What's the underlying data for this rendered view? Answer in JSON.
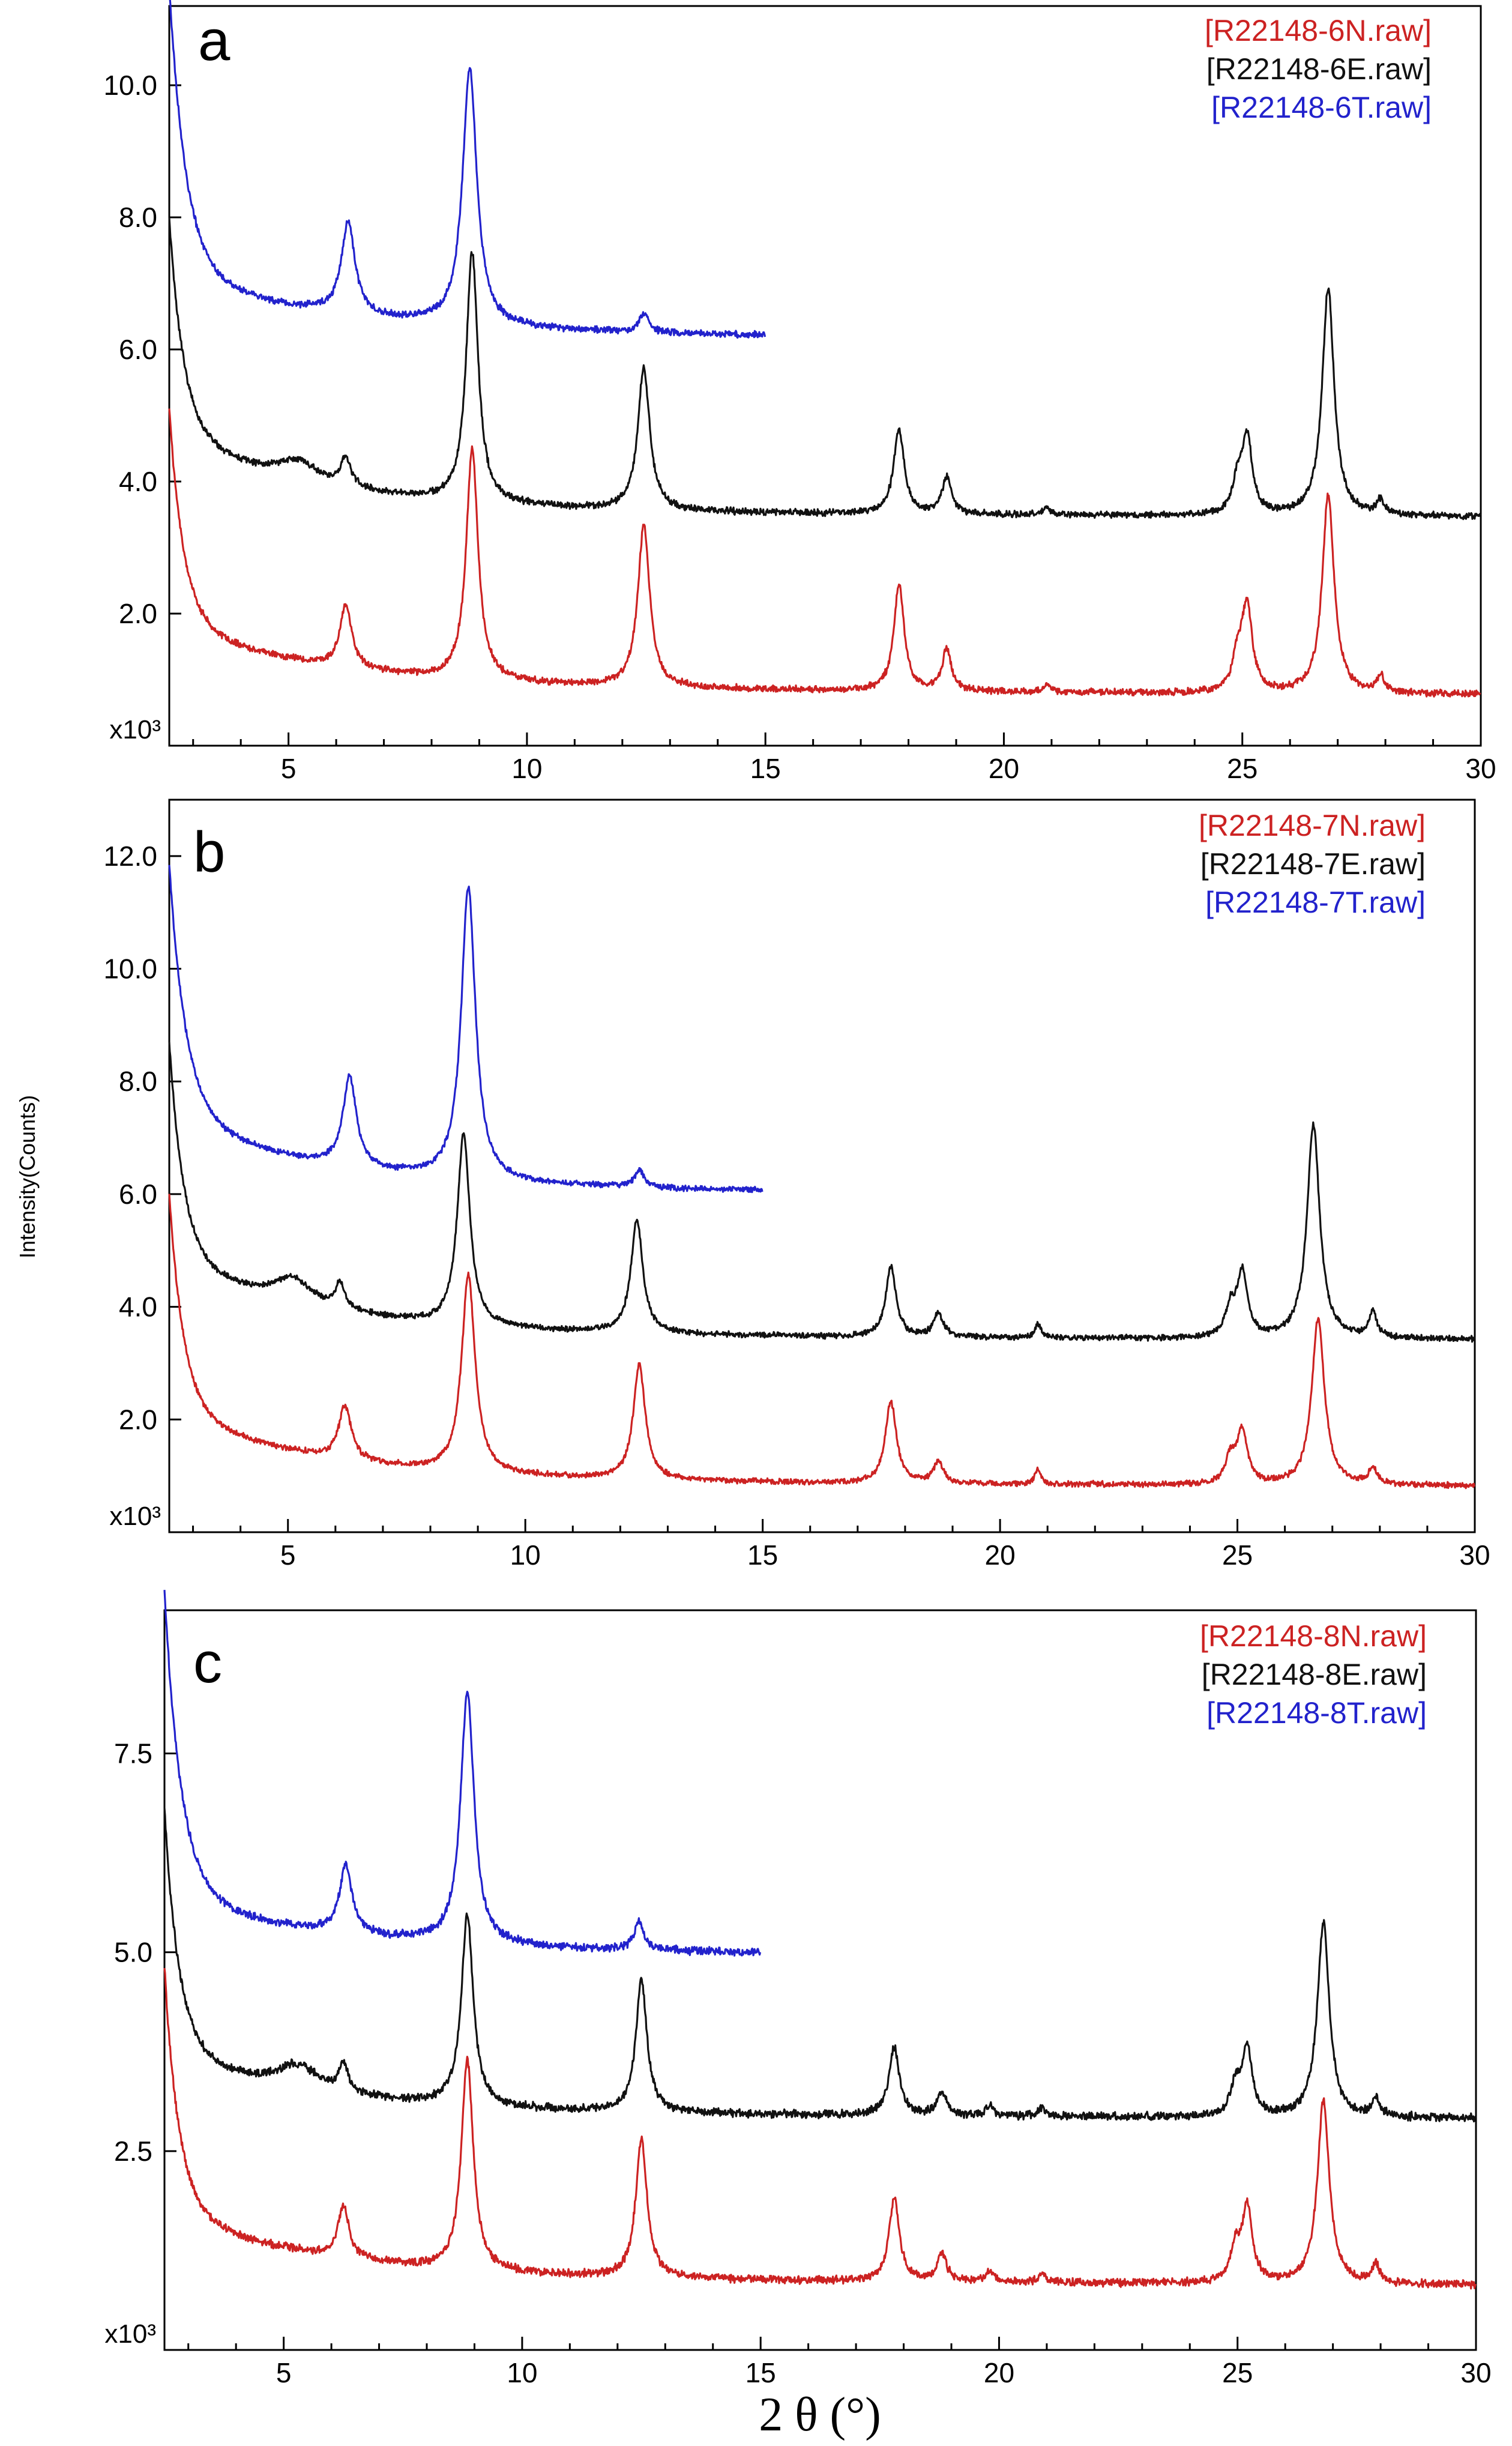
{
  "figure": {
    "xlabel": "2 θ (°)",
    "ylabel": "Intensity(Counts)"
  },
  "chart_data": [
    {
      "type": "line",
      "panel_label": "a",
      "xlim": [
        2.5,
        30
      ],
      "ylim": [
        0,
        11.2
      ],
      "multiplier_label": "x10³",
      "x_ticks": [
        5,
        10,
        15,
        20,
        25,
        30
      ],
      "x_tick_labels": [
        "5",
        "10",
        "15",
        "20",
        "25",
        "30"
      ],
      "y_ticks": [
        2.0,
        4.0,
        6.0,
        8.0,
        10.0
      ],
      "y_tick_labels": [
        "2.0",
        "4.0",
        "6.0",
        "8.0",
        "10.0"
      ],
      "series": [
        {
          "name": "[R22148-6N.raw]",
          "color": "#cc2222",
          "x_end": 30,
          "baseline": 0.75,
          "rise": 3.2,
          "rise_w": 0.3,
          "hump": 0.9,
          "slope": 0.25,
          "peaks": [
            [
              6.2,
              0.95,
              0.15
            ],
            [
              8.85,
              3.5,
              0.15
            ],
            [
              12.45,
              2.45,
              0.15
            ],
            [
              17.8,
              1.6,
              0.13
            ],
            [
              18.8,
              0.62,
              0.12
            ],
            [
              20.9,
              0.14,
              0.08
            ],
            [
              25.1,
              1.3,
              0.13
            ],
            [
              24.9,
              0.5,
              0.12
            ],
            [
              26.8,
              3.0,
              0.15
            ],
            [
              27.9,
              0.25,
              0.1
            ]
          ]
        },
        {
          "name": "[R22148-6E.raw]",
          "color": "#111111",
          "x_end": 30,
          "baseline": 3.45,
          "rise": 3.2,
          "rise_w": 0.3,
          "hump": 1.15,
          "slope": 0.18,
          "peaks": [
            [
              5.2,
              0.3,
              0.5
            ],
            [
              6.2,
              0.45,
              0.12
            ],
            [
              8.85,
              3.8,
              0.15
            ],
            [
              12.45,
              2.15,
              0.15
            ],
            [
              17.8,
              1.3,
              0.13
            ],
            [
              18.8,
              0.55,
              0.12
            ],
            [
              20.9,
              0.12,
              0.08
            ],
            [
              25.1,
              1.15,
              0.13
            ],
            [
              24.9,
              0.45,
              0.12
            ],
            [
              26.8,
              3.45,
              0.15
            ],
            [
              27.9,
              0.22,
              0.1
            ]
          ]
        },
        {
          "name": "[R22148-6T.raw]",
          "color": "#2222cc",
          "x_end": 15,
          "baseline": 6.1,
          "rise": 4.3,
          "rise_w": 0.35,
          "hump": 0.8,
          "slope": 0.3,
          "peaks": [
            [
              6.25,
              1.4,
              0.17
            ],
            [
              8.8,
              3.9,
              0.18
            ],
            [
              12.45,
              0.28,
              0.12
            ]
          ]
        }
      ],
      "legend": [
        "[R22148-6N.raw]",
        "[R22148-6E.raw]",
        "[R22148-6T.raw]"
      ]
    },
    {
      "type": "line",
      "panel_label": "b",
      "xlim": [
        2.5,
        30
      ],
      "ylim": [
        0,
        13
      ],
      "multiplier_label": "x10³",
      "x_ticks": [
        5,
        10,
        15,
        20,
        25,
        30
      ],
      "x_tick_labels": [
        "5",
        "10",
        "15",
        "20",
        "25",
        "30"
      ],
      "y_ticks": [
        2.0,
        4.0,
        6.0,
        8.0,
        10.0,
        12.0
      ],
      "y_tick_labels": [
        "2.0",
        "4.0",
        "6.0",
        "8.0",
        "10.0",
        "12.0"
      ],
      "series": [
        {
          "name": "[R22148-7N.raw]",
          "color": "#cc2222",
          "x_end": 30,
          "baseline": 0.8,
          "rise": 3.8,
          "rise_w": 0.3,
          "hump": 1.2,
          "slope": 0.22,
          "peaks": [
            [
              6.2,
              0.95,
              0.16
            ],
            [
              8.8,
              3.5,
              0.17
            ],
            [
              12.4,
              2.05,
              0.15
            ],
            [
              17.7,
              1.45,
              0.14
            ],
            [
              18.7,
              0.38,
              0.12
            ],
            [
              20.8,
              0.25,
              0.08
            ],
            [
              25.1,
              0.95,
              0.13
            ],
            [
              24.85,
              0.45,
              0.12
            ],
            [
              26.7,
              2.95,
              0.16
            ],
            [
              27.85,
              0.3,
              0.1
            ]
          ]
        },
        {
          "name": "[R22148-7E.raw]",
          "color": "#111111",
          "x_end": 30,
          "baseline": 3.4,
          "rise": 3.8,
          "rise_w": 0.3,
          "hump": 1.3,
          "slope": 0.2,
          "peaks": [
            [
              5.1,
              0.45,
              0.5
            ],
            [
              6.1,
              0.45,
              0.12
            ],
            [
              8.7,
              3.4,
              0.16
            ],
            [
              12.35,
              2.0,
              0.15
            ],
            [
              17.7,
              1.25,
              0.13
            ],
            [
              18.7,
              0.42,
              0.12
            ],
            [
              20.8,
              0.25,
              0.08
            ],
            [
              25.1,
              1.15,
              0.13
            ],
            [
              24.85,
              0.5,
              0.12
            ],
            [
              26.6,
              3.8,
              0.16
            ],
            [
              27.85,
              0.45,
              0.1
            ]
          ]
        },
        {
          "name": "[R22148-7T.raw]",
          "color": "#2222cc",
          "x_end": 15,
          "baseline": 5.95,
          "rise": 4.4,
          "rise_w": 0.35,
          "hump": 1.2,
          "slope": 0.3,
          "peaks": [
            [
              6.3,
              1.6,
              0.17
            ],
            [
              8.8,
              5.2,
              0.18
            ],
            [
              12.4,
              0.3,
              0.12
            ]
          ]
        }
      ],
      "legend": [
        "[R22148-7N.raw]",
        "[R22148-7E.raw]",
        "[R22148-7T.raw]"
      ]
    },
    {
      "type": "line",
      "panel_label": "c",
      "xlim": [
        2.5,
        30
      ],
      "ylim": [
        0,
        9.3
      ],
      "multiplier_label": "x10³",
      "x_ticks": [
        5,
        10,
        15,
        20,
        25,
        30
      ],
      "x_tick_labels": [
        "5",
        "10",
        "15",
        "20",
        "25",
        "30"
      ],
      "y_ticks": [
        2.5,
        5.0,
        7.5
      ],
      "y_tick_labels": [
        "2.5",
        "5.0",
        "7.5"
      ],
      "series": [
        {
          "name": "[R22148-8N.raw]",
          "color": "#cc2222",
          "x_end": 30,
          "baseline": 0.8,
          "rise": 3.0,
          "rise_w": 0.3,
          "hump": 0.8,
          "slope": 0.2,
          "peaks": [
            [
              6.25,
              0.65,
              0.14
            ],
            [
              8.85,
              2.65,
              0.15
            ],
            [
              12.5,
              1.75,
              0.14
            ],
            [
              17.8,
              1.05,
              0.13
            ],
            [
              18.8,
              0.35,
              0.12
            ],
            [
              19.8,
              0.12,
              0.1
            ],
            [
              20.9,
              0.12,
              0.08
            ],
            [
              25.2,
              0.95,
              0.13
            ],
            [
              24.95,
              0.4,
              0.12
            ],
            [
              26.8,
              2.3,
              0.15
            ],
            [
              27.9,
              0.22,
              0.1
            ]
          ]
        },
        {
          "name": "[R22148-8E.raw]",
          "color": "#111111",
          "x_end": 30,
          "baseline": 2.9,
          "rise": 3.0,
          "rise_w": 0.3,
          "hump": 0.75,
          "slope": 0.15,
          "peaks": [
            [
              5.3,
              0.3,
              0.5
            ],
            [
              6.25,
              0.35,
              0.12
            ],
            [
              8.85,
              2.4,
              0.15
            ],
            [
              12.5,
              1.65,
              0.14
            ],
            [
              17.8,
              0.85,
              0.13
            ],
            [
              18.8,
              0.3,
              0.12
            ],
            [
              19.8,
              0.12,
              0.1
            ],
            [
              20.9,
              0.12,
              0.08
            ],
            [
              25.2,
              0.85,
              0.13
            ],
            [
              24.95,
              0.35,
              0.12
            ],
            [
              26.8,
              2.45,
              0.15
            ],
            [
              27.9,
              0.22,
              0.1
            ]
          ]
        },
        {
          "name": "[R22148-8T.raw]",
          "color": "#2222cc",
          "x_end": 15,
          "baseline": 4.9,
          "rise": 3.8,
          "rise_w": 0.35,
          "hump": 0.6,
          "slope": 0.25,
          "peaks": [
            [
              6.3,
              0.85,
              0.16
            ],
            [
              8.85,
              3.15,
              0.17
            ],
            [
              12.45,
              0.35,
              0.12
            ]
          ]
        }
      ],
      "legend": [
        "[R22148-8N.raw]",
        "[R22148-8E.raw]",
        "[R22148-8T.raw]"
      ]
    }
  ]
}
